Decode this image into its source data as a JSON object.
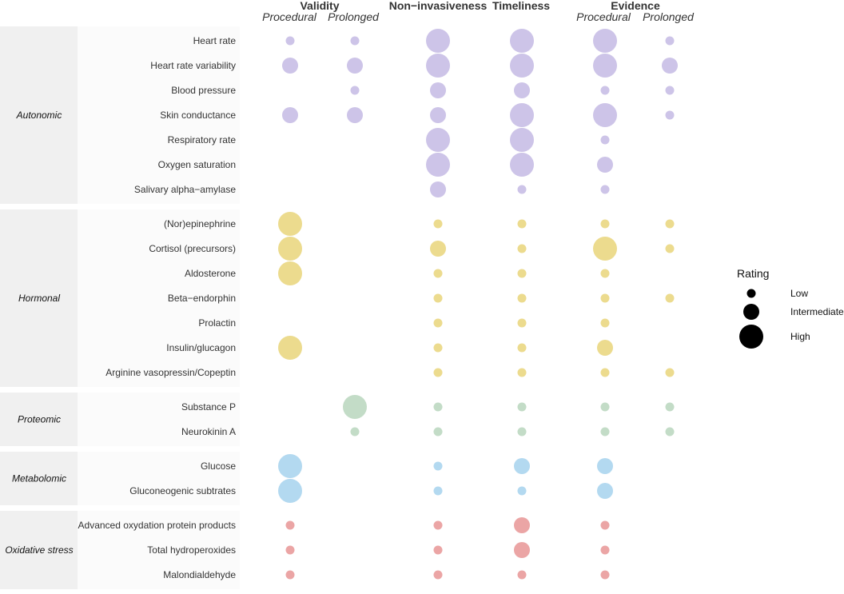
{
  "chart_data": {
    "type": "scatter",
    "title": "",
    "column_groups": [
      {
        "name": "Validity",
        "subcolumns": [
          "Procedural",
          "Prolonged"
        ]
      },
      {
        "name": "Non−invasiveness",
        "subcolumns": [
          ""
        ]
      },
      {
        "name": "Timeliness",
        "subcolumns": [
          ""
        ]
      },
      {
        "name": "Evidence",
        "subcolumns": [
          "Procedural",
          "Prolonged"
        ]
      }
    ],
    "scale": {
      "1": "Low",
      "2": "Intermediate",
      "3": "High"
    },
    "legend": {
      "title": "Rating",
      "levels": [
        "Low",
        "Intermediate",
        "High"
      ],
      "placement": "right"
    },
    "categories": [
      {
        "name": "Autonomic",
        "color": "#cdc4e8",
        "rows": [
          {
            "label": "Heart rate",
            "values": [
              1,
              1,
              3,
              3,
              3,
              1
            ]
          },
          {
            "label": "Heart rate variability",
            "values": [
              2,
              2,
              3,
              3,
              3,
              2
            ]
          },
          {
            "label": "Blood pressure",
            "values": [
              0,
              1,
              2,
              2,
              1,
              1
            ]
          },
          {
            "label": "Skin conductance",
            "values": [
              2,
              2,
              2,
              3,
              3,
              1
            ]
          },
          {
            "label": "Respiratory rate",
            "values": [
              0,
              0,
              3,
              3,
              1,
              0
            ]
          },
          {
            "label": "Oxygen saturation",
            "values": [
              0,
              0,
              3,
              3,
              2,
              0
            ]
          },
          {
            "label": "Salivary alpha−amylase",
            "values": [
              0,
              0,
              2,
              1,
              1,
              0
            ]
          }
        ]
      },
      {
        "name": "Hormonal",
        "color": "#ecdb8e",
        "rows": [
          {
            "label": "(Nor)epinephrine",
            "values": [
              3,
              0,
              1,
              1,
              1,
              1
            ]
          },
          {
            "label": "Cortisol (precursors)",
            "values": [
              3,
              0,
              2,
              1,
              3,
              1
            ]
          },
          {
            "label": "Aldosterone",
            "values": [
              3,
              0,
              1,
              1,
              1,
              0
            ]
          },
          {
            "label": "Beta−endorphin",
            "values": [
              0,
              0,
              1,
              1,
              1,
              1
            ]
          },
          {
            "label": "Prolactin",
            "values": [
              0,
              0,
              1,
              1,
              1,
              0
            ]
          },
          {
            "label": "Insulin/glucagon",
            "values": [
              3,
              0,
              1,
              1,
              2,
              0
            ]
          },
          {
            "label": "Arginine vasopressin/Copeptin",
            "values": [
              0,
              0,
              1,
              1,
              1,
              1
            ]
          }
        ]
      },
      {
        "name": "Proteomic",
        "color": "#c3dcc7",
        "rows": [
          {
            "label": "Substance P",
            "values": [
              0,
              3,
              1,
              1,
              1,
              1
            ]
          },
          {
            "label": "Neurokinin A",
            "values": [
              0,
              1,
              1,
              1,
              1,
              1
            ]
          }
        ]
      },
      {
        "name": "Metabolomic",
        "color": "#b3d9f0",
        "rows": [
          {
            "label": "Glucose",
            "values": [
              3,
              0,
              1,
              2,
              2,
              0
            ]
          },
          {
            "label": "Gluconeogenic subtrates",
            "values": [
              3,
              0,
              1,
              1,
              2,
              0
            ]
          }
        ]
      },
      {
        "name": "Oxidative stress",
        "color": "#eba5a5",
        "rows": [
          {
            "label": "Advanced oxydation protein products",
            "values": [
              1,
              0,
              1,
              2,
              1,
              0
            ]
          },
          {
            "label": "Total hydroperoxides",
            "values": [
              1,
              0,
              1,
              2,
              1,
              0
            ]
          },
          {
            "label": "Malondialdehyde",
            "values": [
              1,
              0,
              1,
              1,
              1,
              0
            ]
          }
        ]
      }
    ]
  }
}
